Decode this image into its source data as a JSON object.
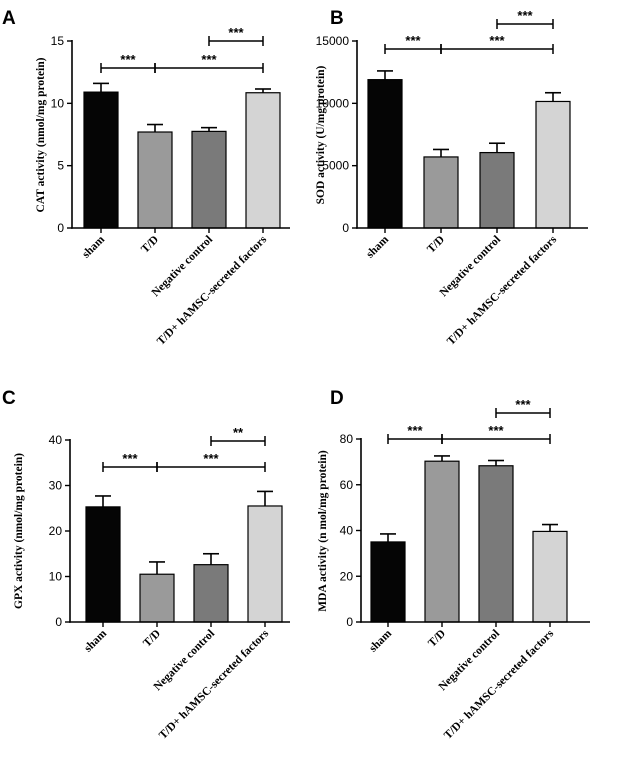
{
  "chart_data": [
    {
      "type": "bar",
      "panel": "A",
      "ylabel": "CAT activity (nmol/mg protein)",
      "ylim": [
        0,
        15
      ],
      "yticks": [
        "0",
        "5",
        "10",
        "15"
      ],
      "categories": [
        "sham",
        "T/D",
        "Negative control",
        "T/D+ hAMSC-secreted factors"
      ],
      "values": [
        10.9,
        7.7,
        7.75,
        10.85
      ],
      "errors": [
        0.7,
        0.6,
        0.3,
        0.3
      ],
      "colors": [
        "#050505",
        "#9a9a9a",
        "#7a7a7a",
        "#d4d4d4"
      ],
      "significance": [
        {
          "from": 0,
          "to": 1,
          "label": "***",
          "level": 1
        },
        {
          "from": 1,
          "to": 3,
          "label": "***",
          "level": 1
        },
        {
          "from": 2,
          "to": 3,
          "label": "***",
          "level": 2
        }
      ]
    },
    {
      "type": "bar",
      "panel": "B",
      "ylabel": "SOD activity (U/mg protein)",
      "ylim": [
        0,
        15000
      ],
      "yticks": [
        "0",
        "5000",
        "10000",
        "15000"
      ],
      "categories": [
        "sham",
        "T/D",
        "Negative control",
        "T/D+ hAMSC-secreted factors"
      ],
      "values": [
        11900,
        5700,
        6050,
        10150
      ],
      "errors": [
        700,
        600,
        750,
        700
      ],
      "colors": [
        "#050505",
        "#9a9a9a",
        "#7a7a7a",
        "#d4d4d4"
      ],
      "significance": [
        {
          "from": 0,
          "to": 1,
          "label": "***",
          "level": 1
        },
        {
          "from": 1,
          "to": 3,
          "label": "***",
          "level": 1
        },
        {
          "from": 2,
          "to": 3,
          "label": "***",
          "level": 2
        }
      ]
    },
    {
      "type": "bar",
      "panel": "C",
      "ylabel": "GPX activity (nmol/mg protein)",
      "ylim": [
        0,
        40
      ],
      "yticks": [
        "0",
        "10",
        "20",
        "30",
        "40"
      ],
      "categories": [
        "sham",
        "T/D",
        "Negative control",
        "T/D+ hAMSC-secreted factors"
      ],
      "values": [
        25.3,
        10.5,
        12.6,
        25.5
      ],
      "errors": [
        2.4,
        2.7,
        2.4,
        3.2
      ],
      "colors": [
        "#050505",
        "#9a9a9a",
        "#7a7a7a",
        "#d4d4d4"
      ],
      "significance": [
        {
          "from": 0,
          "to": 1,
          "label": "***",
          "level": 1
        },
        {
          "from": 1,
          "to": 3,
          "label": "***",
          "level": 1
        },
        {
          "from": 2,
          "to": 3,
          "label": "**",
          "level": 2
        }
      ]
    },
    {
      "type": "bar",
      "panel": "D",
      "ylabel": "MDA activity (n mol/mg protein)",
      "ylim": [
        0,
        80
      ],
      "yticks": [
        "0",
        "20",
        "40",
        "60",
        "80"
      ],
      "categories": [
        "sham",
        "T/D",
        "Negative control",
        "T/D+ hAMSC-secreted factors"
      ],
      "values": [
        35,
        70.3,
        68.3,
        39.6
      ],
      "errors": [
        3.5,
        2.3,
        2.3,
        3.0
      ],
      "colors": [
        "#050505",
        "#9a9a9a",
        "#7a7a7a",
        "#d4d4d4"
      ],
      "significance": [
        {
          "from": 0,
          "to": 1,
          "label": "***",
          "level": 1
        },
        {
          "from": 1,
          "to": 3,
          "label": "***",
          "level": 1
        },
        {
          "from": 2,
          "to": 3,
          "label": "***",
          "level": 2
        }
      ]
    }
  ]
}
